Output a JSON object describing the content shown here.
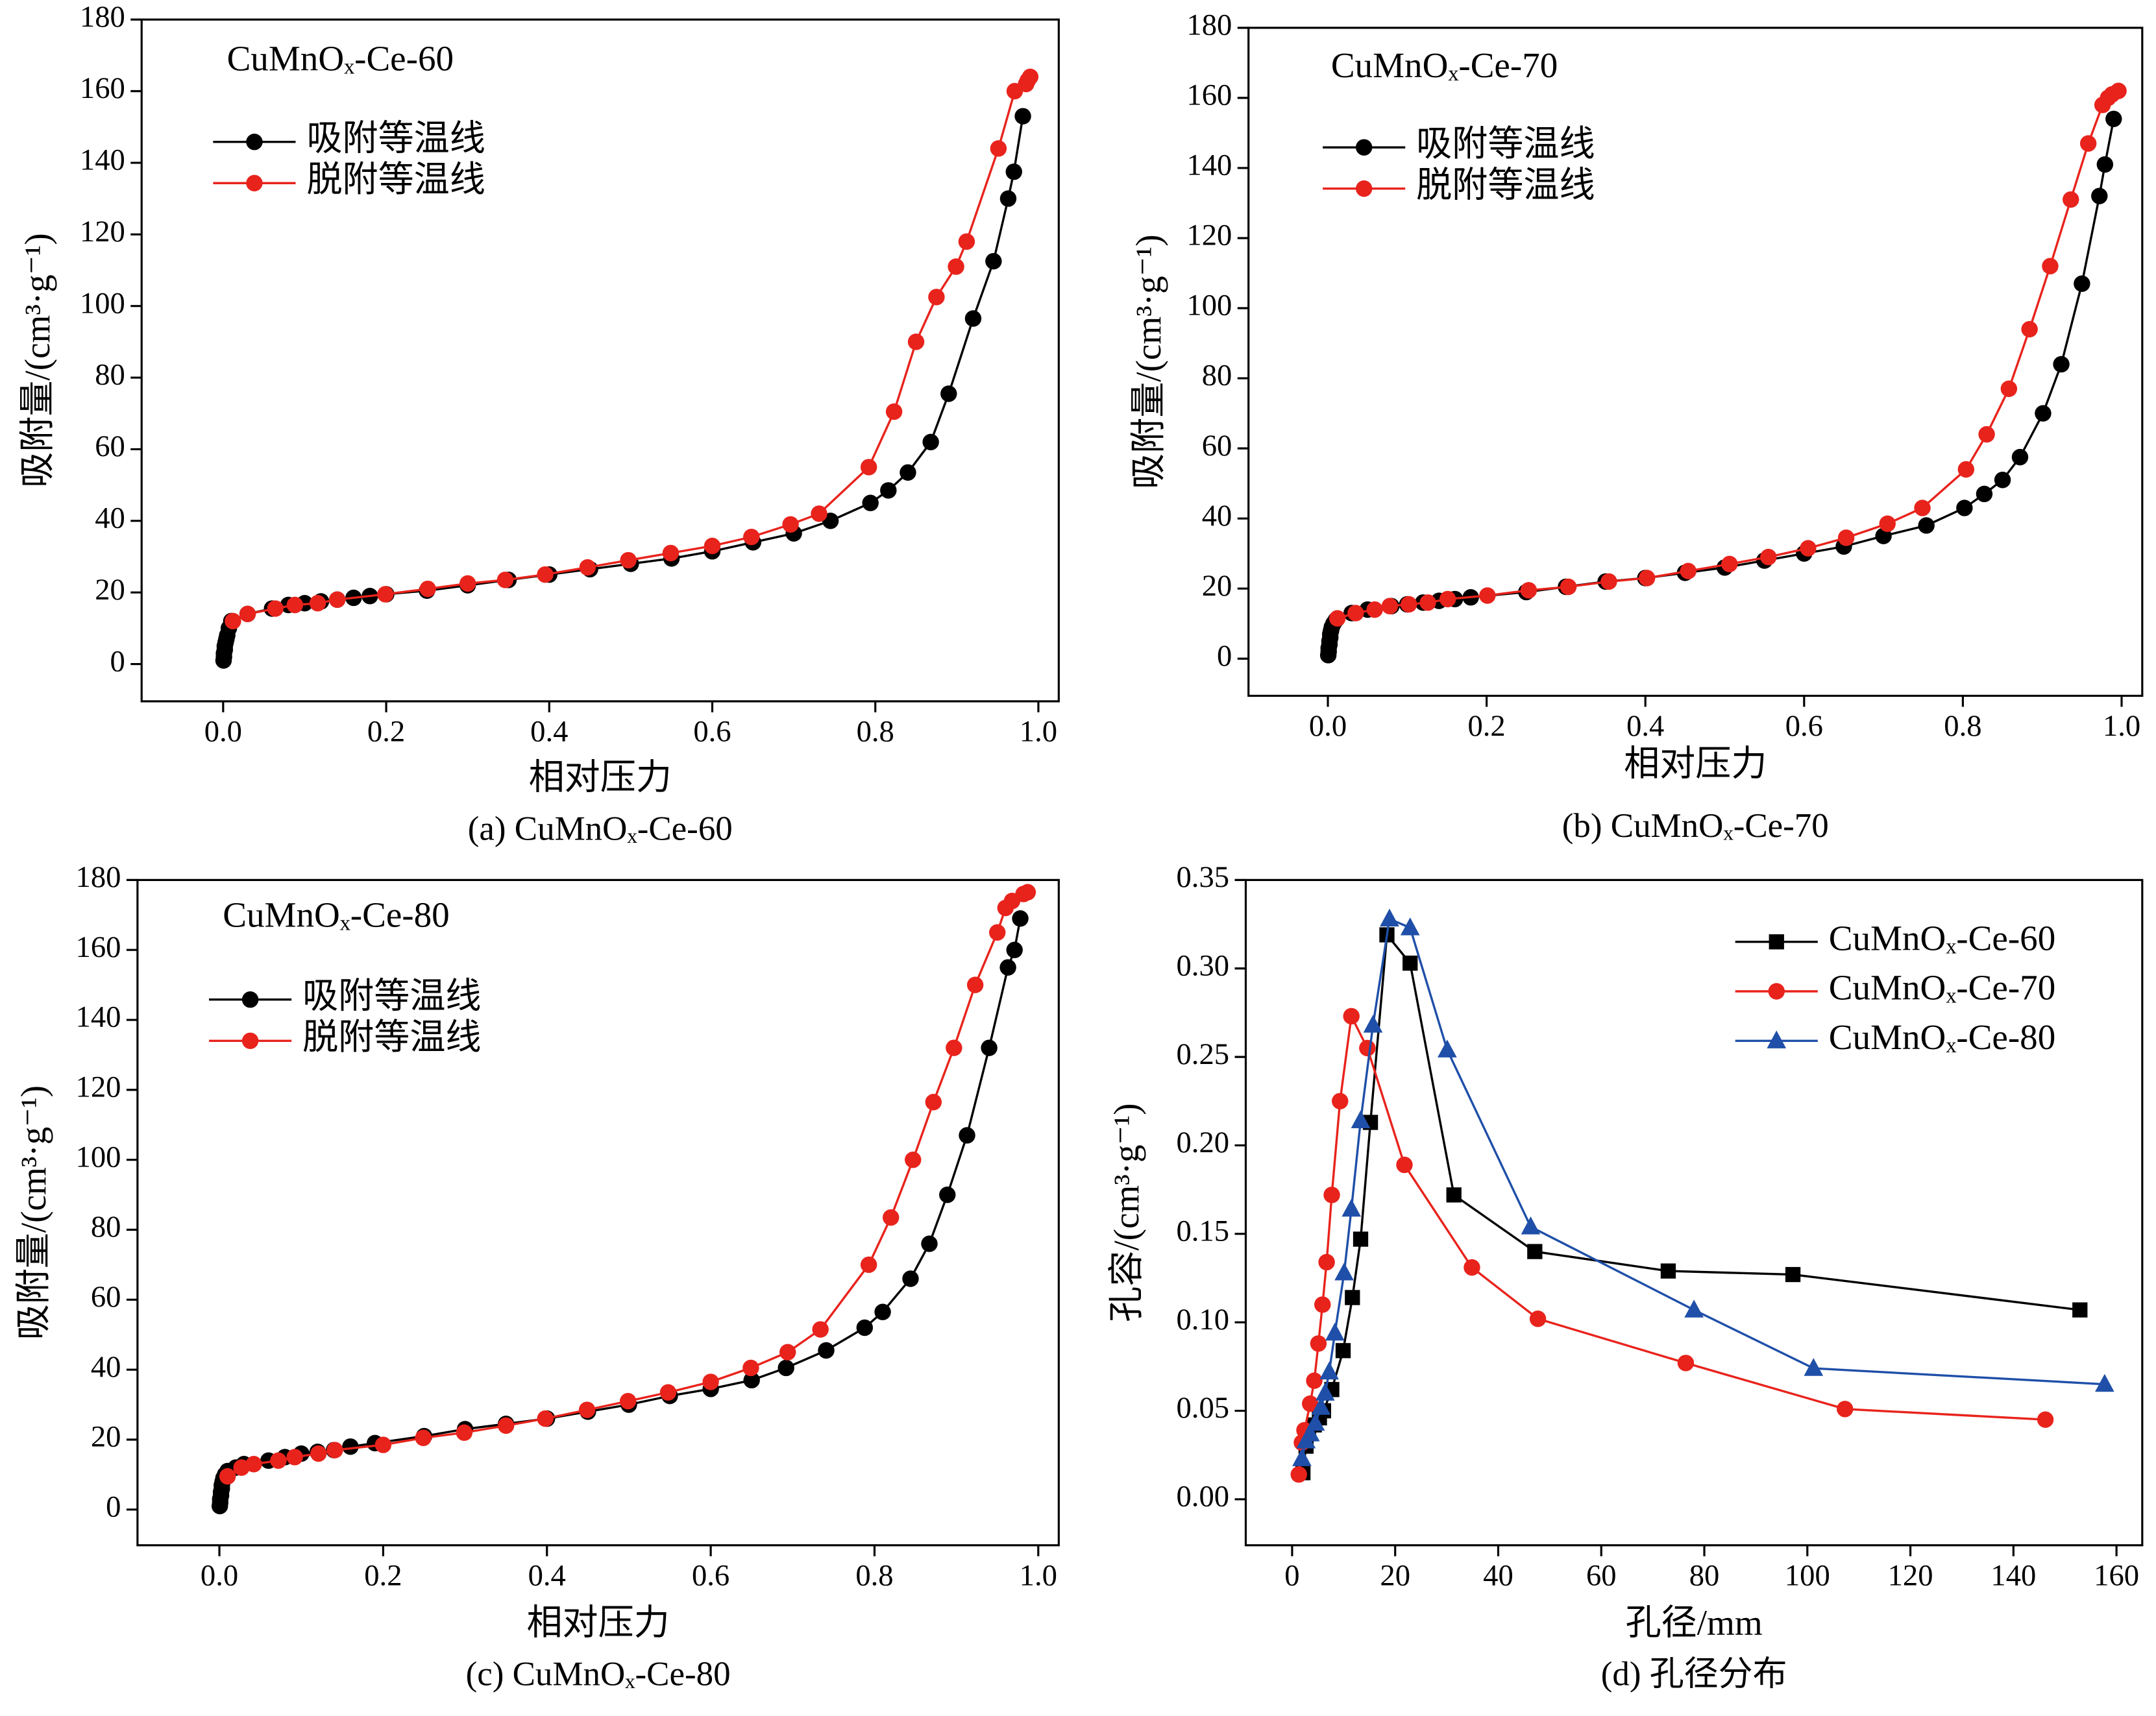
{
  "chart_data": [
    {
      "type": "line",
      "title": "CuMnOₓ-Ce-60",
      "caption": "(a) CuMnOₓ-Ce-60",
      "xlabel": "相对压力",
      "ylabel": "吸附量/(cm³·g⁻¹)",
      "xlim": [
        -0.1,
        1.025
      ],
      "ylim": [
        -10.4,
        180
      ],
      "xticks": [
        {
          "value": 0,
          "label": "0.0"
        },
        {
          "value": 0.2,
          "label": "0.2"
        },
        {
          "value": 0.4,
          "label": "0.4"
        },
        {
          "value": 0.6,
          "label": "0.6"
        },
        {
          "value": 0.8,
          "label": "0.8"
        },
        {
          "value": 1,
          "label": "1.0"
        }
      ],
      "yticks": [
        0,
        20,
        40,
        60,
        80,
        100,
        120,
        140,
        160,
        180
      ],
      "legend": "upper left",
      "series": [
        {
          "name": "吸附等温线",
          "color": "#000000",
          "marker": "circle",
          "x": [
            0.0005,
            0.001,
            0.001,
            0.002,
            0.002,
            0.003,
            0.004,
            0.005,
            0.007,
            0.01,
            0.03,
            0.06,
            0.08,
            0.1,
            0.12,
            0.14,
            0.16,
            0.18,
            0.2,
            0.25,
            0.3,
            0.35,
            0.4,
            0.45,
            0.5,
            0.55,
            0.6,
            0.65,
            0.7,
            0.745,
            0.794,
            0.816,
            0.84,
            0.868,
            0.89,
            0.92,
            0.945,
            0.963,
            0.97,
            0.981
          ],
          "values": [
            1,
            2,
            3,
            4,
            5,
            6,
            7,
            8,
            10,
            12,
            14,
            15.5,
            16.5,
            17,
            17.5,
            18,
            18.5,
            19,
            19.5,
            20.5,
            22,
            23.5,
            25,
            26.5,
            28,
            29.5,
            31.5,
            34,
            36.5,
            40,
            45,
            48.5,
            53.5,
            62,
            75.5,
            96.5,
            112.5,
            130,
            137.5,
            153
          ]
        },
        {
          "name": "脱附等温线",
          "color": "#e8231c",
          "marker": "circle",
          "x": [
            0.99,
            0.987,
            0.985,
            0.971,
            0.951,
            0.912,
            0.899,
            0.875,
            0.85,
            0.823,
            0.792,
            0.731,
            0.696,
            0.648,
            0.6,
            0.549,
            0.497,
            0.447,
            0.395,
            0.346,
            0.3,
            0.251,
            0.199,
            0.14,
            0.116,
            0.088,
            0.064,
            0.03,
            0.012
          ],
          "values": [
            164,
            163,
            162,
            160,
            144,
            118,
            111,
            102.5,
            90,
            70.5,
            55,
            42,
            39,
            35.5,
            33,
            31,
            29,
            27,
            25,
            23.5,
            22.5,
            21,
            19.5,
            18,
            17,
            16.5,
            15.5,
            14,
            12
          ]
        }
      ]
    },
    {
      "type": "line",
      "title": "CuMnOₓ-Ce-70",
      "caption": "(b) CuMnOₓ-Ce-70",
      "xlabel": "相对压力",
      "ylabel": "吸附量/(cm³·g⁻¹)",
      "xlim": [
        -0.1,
        1.026
      ],
      "ylim": [
        -10.6,
        180
      ],
      "xticks": [
        {
          "value": 0,
          "label": "0.0"
        },
        {
          "value": 0.2,
          "label": "0.2"
        },
        {
          "value": 0.4,
          "label": "0.4"
        },
        {
          "value": 0.6,
          "label": "0.6"
        },
        {
          "value": 0.8,
          "label": "0.8"
        },
        {
          "value": 1,
          "label": "1.0"
        }
      ],
      "yticks": [
        0,
        20,
        40,
        60,
        80,
        100,
        120,
        140,
        160,
        180
      ],
      "legend": "upper left",
      "series": [
        {
          "name": "吸附等温线",
          "color": "#000000",
          "marker": "circle",
          "x": [
            0.0005,
            0.001,
            0.001,
            0.002,
            0.002,
            0.003,
            0.003,
            0.004,
            0.005,
            0.007,
            0.01,
            0.03,
            0.05,
            0.08,
            0.1,
            0.12,
            0.14,
            0.16,
            0.18,
            0.25,
            0.3,
            0.35,
            0.4,
            0.45,
            0.5,
            0.55,
            0.6,
            0.65,
            0.7,
            0.754,
            0.802,
            0.827,
            0.85,
            0.872,
            0.901,
            0.924,
            0.95,
            0.972,
            0.979,
            0.99
          ],
          "values": [
            1,
            2,
            3,
            4,
            5,
            6,
            7,
            8,
            9,
            10,
            11,
            13,
            14,
            15,
            15.5,
            16,
            16.5,
            17,
            17.5,
            19,
            20.5,
            22,
            23,
            24.5,
            26,
            28,
            30,
            32,
            35,
            38,
            43,
            47,
            51,
            57.5,
            70,
            84,
            107,
            132,
            141,
            154
          ]
        },
        {
          "name": "脱附等温线",
          "color": "#e8231c",
          "marker": "circle",
          "x": [
            0.996,
            0.988,
            0.983,
            0.976,
            0.958,
            0.936,
            0.91,
            0.884,
            0.858,
            0.83,
            0.804,
            0.749,
            0.705,
            0.653,
            0.605,
            0.555,
            0.506,
            0.454,
            0.402,
            0.354,
            0.303,
            0.253,
            0.201,
            0.151,
            0.126,
            0.102,
            0.078,
            0.059,
            0.035,
            0.012
          ],
          "values": [
            162,
            161,
            160,
            158,
            147,
            131,
            112,
            94,
            77,
            64,
            54,
            43,
            38.5,
            34.5,
            31.5,
            29,
            27,
            25,
            23,
            22,
            20.5,
            19.5,
            18,
            17,
            16,
            15.5,
            15,
            14,
            13,
            11.5
          ]
        }
      ]
    },
    {
      "type": "line",
      "title": "CuMnOₓ-Ce-80",
      "caption": "(c) CuMnOₓ-Ce-80",
      "xlabel": "相对压力",
      "ylabel": "吸附量/(cm³·g⁻¹)",
      "xlim": [
        -0.1,
        1.025
      ],
      "ylim": [
        -10.2,
        180
      ],
      "xticks": [
        {
          "value": 0,
          "label": "0.0"
        },
        {
          "value": 0.2,
          "label": "0.2"
        },
        {
          "value": 0.4,
          "label": "0.4"
        },
        {
          "value": 0.6,
          "label": "0.6"
        },
        {
          "value": 0.8,
          "label": "0.8"
        },
        {
          "value": 1,
          "label": "1.0"
        }
      ],
      "yticks": [
        0,
        20,
        40,
        60,
        80,
        100,
        120,
        140,
        160,
        180
      ],
      "legend": "upper left",
      "series": [
        {
          "name": "吸附等温线",
          "color": "#000000",
          "marker": "circle",
          "x": [
            0.0005,
            0.001,
            0.001,
            0.002,
            0.002,
            0.003,
            0.003,
            0.004,
            0.005,
            0.007,
            0.01,
            0.02,
            0.03,
            0.06,
            0.08,
            0.1,
            0.12,
            0.14,
            0.16,
            0.19,
            0.25,
            0.3,
            0.35,
            0.4,
            0.45,
            0.5,
            0.55,
            0.6,
            0.65,
            0.692,
            0.741,
            0.788,
            0.81,
            0.844,
            0.867,
            0.889,
            0.913,
            0.94,
            0.963,
            0.971,
            0.978
          ],
          "values": [
            1,
            2,
            3,
            4,
            5,
            6,
            7,
            8,
            9,
            10,
            11,
            12,
            13,
            14,
            15,
            16,
            16.5,
            17,
            18,
            19,
            21,
            23,
            24.5,
            26,
            28,
            30,
            32.5,
            34.5,
            37,
            40.5,
            45.5,
            52,
            56.5,
            66,
            76,
            90,
            107,
            132,
            155,
            160,
            169
          ]
        },
        {
          "name": "脱附等温线",
          "color": "#e8231c",
          "marker": "circle",
          "x": [
            0.987,
            0.982,
            0.968,
            0.96,
            0.95,
            0.923,
            0.897,
            0.872,
            0.847,
            0.82,
            0.793,
            0.734,
            0.694,
            0.649,
            0.6,
            0.548,
            0.499,
            0.449,
            0.398,
            0.35,
            0.299,
            0.249,
            0.2,
            0.141,
            0.121,
            0.092,
            0.072,
            0.042,
            0.027,
            0.01
          ],
          "values": [
            176.5,
            176,
            174,
            172,
            165,
            150,
            132,
            116.5,
            100,
            83.5,
            70,
            51.5,
            45,
            40.5,
            36.5,
            33.5,
            31,
            28.5,
            26,
            24,
            22,
            20.5,
            18.5,
            17,
            16,
            15,
            14,
            13,
            12,
            9.5
          ]
        }
      ]
    },
    {
      "type": "line",
      "caption": "(d) 孔径分布",
      "xlabel": "孔径/mm",
      "ylabel": "孔容/(cm³·g⁻¹)",
      "xlim": [
        -9,
        165
      ],
      "ylim": [
        -0.026,
        0.35
      ],
      "xticks": [
        0,
        20,
        40,
        60,
        80,
        100,
        120,
        140,
        160
      ],
      "yticks": [
        {
          "value": 0,
          "label": "0.00"
        },
        {
          "value": 0.05,
          "label": "0.05"
        },
        {
          "value": 0.1,
          "label": "0.10"
        },
        {
          "value": 0.15,
          "label": "0.15"
        },
        {
          "value": 0.2,
          "label": "0.20"
        },
        {
          "value": 0.25,
          "label": "0.25"
        },
        {
          "value": 0.3,
          "label": "0.30"
        },
        {
          "value": 0.35,
          "label": "0.35"
        }
      ],
      "legend": "upper right",
      "series": [
        {
          "name": "CuMnOₓ-Ce-60",
          "color": "#000000",
          "marker": "square",
          "x": [
            2.1,
            2.7,
            3.2,
            4.3,
            5.3,
            6.1,
            7.7,
            9.9,
            11.7,
            13.3,
            15.2,
            18.4,
            22.9,
            31.4,
            47.1,
            73.0,
            97.2,
            152.9
          ],
          "values": [
            0.015,
            0.03,
            0.037,
            0.042,
            0.046,
            0.05,
            0.062,
            0.084,
            0.114,
            0.147,
            0.213,
            0.319,
            0.303,
            0.172,
            0.14,
            0.129,
            0.127,
            0.107
          ]
        },
        {
          "name": "CuMnOₓ-Ce-70",
          "color": "#e8231c",
          "marker": "circle",
          "x": [
            1.3,
            1.9,
            2.4,
            3.5,
            4.3,
            5.1,
            5.9,
            6.7,
            7.7,
            9.3,
            11.5,
            14.6,
            21.8,
            34.9,
            47.7,
            76.4,
            107.3,
            146.2
          ],
          "values": [
            0.014,
            0.032,
            0.039,
            0.054,
            0.067,
            0.088,
            0.11,
            0.134,
            0.172,
            0.225,
            0.273,
            0.255,
            0.189,
            0.131,
            0.102,
            0.077,
            0.051,
            0.045
          ]
        },
        {
          "name": "CuMnOₓ-Ce-80",
          "color": "#1f4fa8",
          "marker": "triangle",
          "x": [
            1.9,
            2.7,
            3.5,
            4.5,
            5.6,
            6.4,
            7.2,
            8.3,
            10.1,
            11.5,
            13.3,
            15.7,
            18.9,
            22.9,
            30.1,
            46.3,
            78.0,
            101.2,
            157.7
          ],
          "values": [
            0.023,
            0.033,
            0.037,
            0.043,
            0.052,
            0.06,
            0.072,
            0.094,
            0.128,
            0.164,
            0.214,
            0.268,
            0.328,
            0.323,
            0.254,
            0.154,
            0.107,
            0.074,
            0.065
          ]
        }
      ]
    }
  ]
}
